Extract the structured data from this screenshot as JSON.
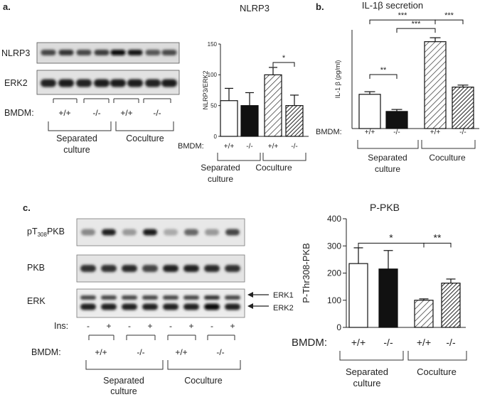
{
  "panels": {
    "a": {
      "label": "a.",
      "blot_rows": [
        "NLRP3",
        "ERK2"
      ],
      "bmdm_label": "BMDM:",
      "genotypes": [
        "+/+",
        "-/-",
        "+/+",
        "-/-"
      ],
      "group_labels": [
        [
          "Separated",
          "culture"
        ],
        [
          "Coculture"
        ]
      ]
    },
    "b": {
      "label": "b."
    },
    "c": {
      "label": "c.",
      "blot_rows": [
        {
          "main": "pT",
          "sub": "308",
          "tail": "PKB"
        },
        "PKB",
        "ERK"
      ],
      "arrow_labels": [
        "ERK1",
        "ERK2"
      ],
      "ins_label": "Ins:",
      "ins_values": [
        "-",
        "+",
        "-",
        "+",
        "-",
        "+",
        "-",
        "+"
      ],
      "bmdm_label": "BMDM:",
      "genotypes": [
        "+/+",
        "-/-",
        "+/+",
        "-/-"
      ],
      "group_labels": [
        [
          "Separated",
          "culture"
        ],
        [
          "Coculture"
        ]
      ]
    }
  },
  "chart_data": [
    {
      "id": "nlrp3",
      "type": "bar",
      "title": "NLRP3",
      "ylabel": "NLRP3/ERK2",
      "ylim": [
        0,
        150
      ],
      "yticks": [
        "0",
        "50",
        "100",
        "150"
      ],
      "categories": [
        "+/+",
        "-/-",
        "+/+",
        "-/-"
      ],
      "values": [
        58,
        50,
        100,
        50
      ],
      "errors": [
        20,
        21,
        12,
        17
      ],
      "fills": [
        "white",
        "black",
        "hatch",
        "hatch-dense"
      ],
      "bmdm_label": "BMDM:",
      "group_labels": [
        [
          "Separated",
          "culture"
        ],
        [
          "Coculture"
        ]
      ],
      "significance": [
        {
          "from": 2,
          "to": 3,
          "label": "*"
        }
      ]
    },
    {
      "id": "il1b",
      "type": "bar",
      "title": "IL-1β secretion",
      "ylabel": "IL-1 β (pg/ml)",
      "ylim": [
        0,
        15
      ],
      "categories": [
        "+/+",
        "-/-",
        "+/+",
        "-/-"
      ],
      "values": [
        5.2,
        2.6,
        13.2,
        6.3
      ],
      "errors": [
        0.4,
        0.3,
        0.6,
        0.3
      ],
      "fills": [
        "white",
        "black",
        "hatch",
        "hatch-dense"
      ],
      "bmdm_label": "BMDM:",
      "group_labels": [
        [
          "Separated",
          "culture"
        ],
        [
          "Coculture"
        ]
      ],
      "significance": [
        {
          "from": 0,
          "to": 1,
          "label": "**"
        },
        {
          "from": 0,
          "to": 2,
          "label": "***"
        },
        {
          "from": 1,
          "to": 2,
          "label": "***"
        },
        {
          "from": 2,
          "to": 3,
          "label": "***"
        }
      ]
    },
    {
      "id": "ppkb",
      "type": "bar",
      "title": "P-PKB",
      "ylabel": "P-Thr308-PKB",
      "ylim": [
        0,
        400
      ],
      "yticks": [
        "0",
        "100",
        "200",
        "300",
        "400"
      ],
      "categories": [
        "+/+",
        "-/-",
        "+/+",
        "-/-"
      ],
      "values": [
        235,
        215,
        100,
        163
      ],
      "errors": [
        58,
        68,
        5,
        15
      ],
      "fills": [
        "white",
        "black",
        "hatch",
        "hatch-dense"
      ],
      "bmdm_label": "BMDM:",
      "group_labels": [
        [
          "Separated",
          "culture"
        ],
        [
          "Coculture"
        ]
      ],
      "significance": [
        {
          "from": 0,
          "to": 2,
          "label": "*"
        },
        {
          "from": 2,
          "to": 3,
          "label": "**"
        }
      ]
    }
  ]
}
